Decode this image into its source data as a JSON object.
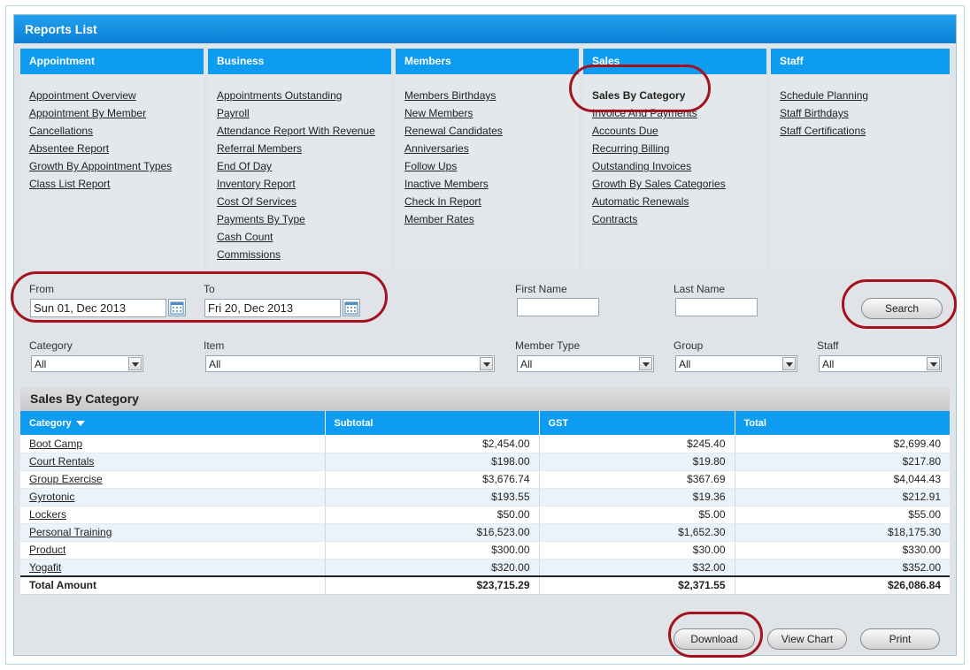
{
  "panel_title": "Reports List",
  "report_columns": [
    {
      "title": "Appointment",
      "links": [
        "Appointment Overview",
        "Appointment By Member",
        "Cancellations",
        "Absentee Report",
        "Growth By Appointment Types",
        "Class List Report"
      ]
    },
    {
      "title": "Business",
      "links": [
        "Appointments Outstanding",
        "Payroll",
        "Attendance Report With Revenue",
        "Referral Members",
        "End Of Day",
        "Inventory Report",
        "Cost Of Services",
        "Payments By Type",
        "Cash Count",
        "Commissions"
      ]
    },
    {
      "title": "Members",
      "links": [
        "Members Birthdays",
        "New Members",
        "Renewal Candidates",
        "Anniversaries",
        "Follow Ups",
        "Inactive Members",
        "Check In Report",
        "Member Rates"
      ]
    },
    {
      "title": "Sales",
      "links": [
        "Sales By Category",
        "Invoice And Payments",
        "Accounts Due",
        "Recurring Billing",
        "Outstanding Invoices",
        "Growth By Sales Categories",
        "Automatic Renewals",
        "Contracts"
      ]
    },
    {
      "title": "Staff",
      "links": [
        "Schedule Planning",
        "Staff Birthdays",
        "Staff Certifications"
      ]
    }
  ],
  "filters": {
    "from_label": "From",
    "from_value": "Sun 01, Dec 2013",
    "to_label": "To",
    "to_value": "Fri 20, Dec 2013",
    "first_name_label": "First Name",
    "first_name_value": "",
    "last_name_label": "Last Name",
    "last_name_value": "",
    "search_label": "Search",
    "category_label": "Category",
    "category_value": "All",
    "item_label": "Item",
    "item_value": "All",
    "member_type_label": "Member Type",
    "member_type_value": "All",
    "group_label": "Group",
    "group_value": "All",
    "staff_label": "Staff",
    "staff_value": "All"
  },
  "sales_table": {
    "title": "Sales By Category",
    "columns": [
      "Category",
      "Subtotal",
      "GST",
      "Total"
    ],
    "rows": [
      {
        "category": "Boot Camp",
        "subtotal": "$2,454.00",
        "gst": "$245.40",
        "total": "$2,699.40"
      },
      {
        "category": "Court Rentals",
        "subtotal": "$198.00",
        "gst": "$19.80",
        "total": "$217.80"
      },
      {
        "category": "Group Exercise",
        "subtotal": "$3,676.74",
        "gst": "$367.69",
        "total": "$4,044.43"
      },
      {
        "category": "Gyrotonic",
        "subtotal": "$193.55",
        "gst": "$19.36",
        "total": "$212.91"
      },
      {
        "category": "Lockers",
        "subtotal": "$50.00",
        "gst": "$5.00",
        "total": "$55.00"
      },
      {
        "category": "Personal Training",
        "subtotal": "$16,523.00",
        "gst": "$1,652.30",
        "total": "$18,175.30"
      },
      {
        "category": "Product",
        "subtotal": "$300.00",
        "gst": "$30.00",
        "total": "$330.00"
      },
      {
        "category": "Yogafit",
        "subtotal": "$320.00",
        "gst": "$32.00",
        "total": "$352.00"
      }
    ],
    "total_row": {
      "label": "Total Amount",
      "subtotal": "$23,715.29",
      "gst": "$2,371.55",
      "total": "$26,086.84"
    }
  },
  "actions": {
    "download_label": "Download",
    "view_chart_label": "View Chart",
    "print_label": "Print"
  },
  "colors": {
    "header_blue": "#0d9cf0",
    "highlight_red": "#a2131f"
  }
}
